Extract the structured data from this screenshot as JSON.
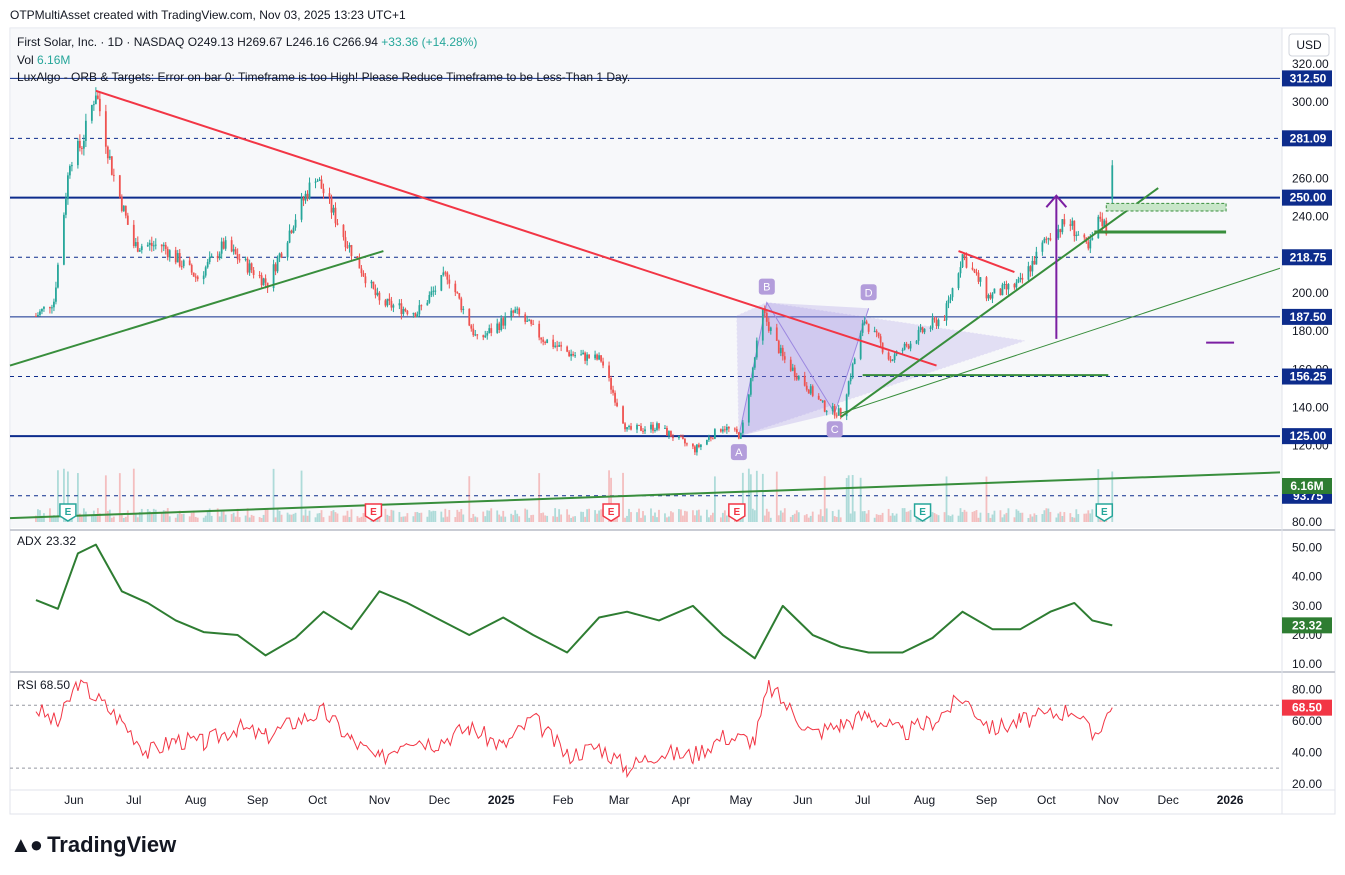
{
  "header": {
    "attribution": "OTPMultiAsset created with TradingView.com, Nov 03, 2025 13:23 UTC+1"
  },
  "legend": {
    "symbol": "First Solar, Inc. · 1D · NASDAQ",
    "open": "O249.13",
    "high": "H269.67",
    "low": "L246.16",
    "close": "C266.94",
    "change": "+33.36 (+14.28%)",
    "vol_label": "Vol",
    "vol_value": "6.16M",
    "indicator_note": "LuxAlgo - ORB & Targets: Error on bar 0: Timeframe is too High! Please Reduce Timeframe to be Less-Than 1 Day."
  },
  "currency": "USD",
  "brand": "TradingView",
  "colors": {
    "up": "#26a69a",
    "down": "#ef5350",
    "trend_red": "#f23645",
    "trend_green": "#388e3c",
    "level_blue": "#0d2c8c",
    "adx": "#2e7d32",
    "rsi": "#f23645",
    "pattern": "#9c88e0",
    "arrow": "#7b1fa2"
  },
  "chart_data": [
    {
      "type": "candlestick",
      "title": "First Solar, Inc. · 1D · NASDAQ",
      "ylim": [
        80,
        330
      ],
      "y_ticks": [
        80,
        100,
        120,
        140,
        160,
        180,
        200,
        220,
        240,
        260,
        280,
        300,
        320
      ],
      "y_tick_labels": [
        "80.00",
        "",
        "120.00",
        "140.00",
        "160.00",
        "180.00",
        "200.00",
        "",
        "240.00",
        "260.00",
        "",
        "300.00",
        "320.00"
      ],
      "x_tick_labels": [
        {
          "date": "2024-06-01",
          "label": "Jun"
        },
        {
          "date": "2024-07-01",
          "label": "Jul"
        },
        {
          "date": "2024-08-01",
          "label": "Aug"
        },
        {
          "date": "2024-09-01",
          "label": "Sep"
        },
        {
          "date": "2024-10-01",
          "label": "Oct"
        },
        {
          "date": "2024-11-01",
          "label": "Nov"
        },
        {
          "date": "2024-12-01",
          "label": "Dec"
        },
        {
          "date": "2025-01-01",
          "label": "2025"
        },
        {
          "date": "2025-02-01",
          "label": "Feb"
        },
        {
          "date": "2025-03-01",
          "label": "Mar"
        },
        {
          "date": "2025-04-01",
          "label": "Apr"
        },
        {
          "date": "2025-05-01",
          "label": "May"
        },
        {
          "date": "2025-06-01",
          "label": "Jun"
        },
        {
          "date": "2025-07-01",
          "label": "Jul"
        },
        {
          "date": "2025-08-01",
          "label": "Aug"
        },
        {
          "date": "2025-09-01",
          "label": "Sep"
        },
        {
          "date": "2025-10-01",
          "label": "Oct"
        },
        {
          "date": "2025-11-01",
          "label": "Nov"
        },
        {
          "date": "2025-12-01",
          "label": "Dec"
        },
        {
          "date": "2026-01-01",
          "label": "2026"
        }
      ],
      "close_path": [
        {
          "date": "2024-05-13",
          "close": 188
        },
        {
          "date": "2024-05-22",
          "close": 196
        },
        {
          "date": "2024-05-30",
          "close": 270
        },
        {
          "date": "2024-06-05",
          "close": 278
        },
        {
          "date": "2024-06-12",
          "close": 306
        },
        {
          "date": "2024-06-20",
          "close": 265
        },
        {
          "date": "2024-07-01",
          "close": 225
        },
        {
          "date": "2024-07-15",
          "close": 225
        },
        {
          "date": "2024-08-02",
          "close": 208
        },
        {
          "date": "2024-08-15",
          "close": 225
        },
        {
          "date": "2024-09-06",
          "close": 205
        },
        {
          "date": "2024-09-20",
          "close": 240
        },
        {
          "date": "2024-09-30",
          "close": 262
        },
        {
          "date": "2024-10-15",
          "close": 228
        },
        {
          "date": "2024-11-01",
          "close": 195
        },
        {
          "date": "2024-11-20",
          "close": 190
        },
        {
          "date": "2024-12-05",
          "close": 210
        },
        {
          "date": "2024-12-20",
          "close": 175
        },
        {
          "date": "2025-01-08",
          "close": 190
        },
        {
          "date": "2025-01-22",
          "close": 176
        },
        {
          "date": "2025-02-05",
          "close": 168
        },
        {
          "date": "2025-02-20",
          "close": 165
        },
        {
          "date": "2025-03-05",
          "close": 128
        },
        {
          "date": "2025-03-20",
          "close": 130
        },
        {
          "date": "2025-04-08",
          "close": 118
        },
        {
          "date": "2025-04-22",
          "close": 130
        },
        {
          "date": "2025-05-01",
          "close": 125
        },
        {
          "date": "2025-05-12",
          "close": 190
        },
        {
          "date": "2025-05-22",
          "close": 166
        },
        {
          "date": "2025-06-12",
          "close": 140
        },
        {
          "date": "2025-06-20",
          "close": 137
        },
        {
          "date": "2025-07-02",
          "close": 186
        },
        {
          "date": "2025-07-15",
          "close": 165
        },
        {
          "date": "2025-07-31",
          "close": 180
        },
        {
          "date": "2025-08-11",
          "close": 188
        },
        {
          "date": "2025-08-20",
          "close": 220
        },
        {
          "date": "2025-09-02",
          "close": 198
        },
        {
          "date": "2025-09-18",
          "close": 205
        },
        {
          "date": "2025-10-01",
          "close": 228
        },
        {
          "date": "2025-10-12",
          "close": 238
        },
        {
          "date": "2025-10-22",
          "close": 222
        },
        {
          "date": "2025-10-28",
          "close": 240
        },
        {
          "date": "2025-10-31",
          "close": 233.58
        },
        {
          "date": "2025-11-03",
          "close": 266.94
        }
      ],
      "horizontal_levels": [
        {
          "value": 312.5,
          "label": "312.50",
          "style": "solid"
        },
        {
          "value": 281.09,
          "label": "281.09",
          "style": "dashed"
        },
        {
          "value": 250.0,
          "label": "250.00",
          "style": "solid"
        },
        {
          "value": 218.75,
          "label": "218.75",
          "style": "dashed"
        },
        {
          "value": 187.5,
          "label": "187.50",
          "style": "solid"
        },
        {
          "value": 156.25,
          "label": "156.25",
          "style": "dashed"
        },
        {
          "value": 125.0,
          "label": "125.00",
          "style": "solid"
        },
        {
          "value": 93.75,
          "label": "93.75",
          "style": "dashed"
        }
      ],
      "last_volume_label": "6.16M",
      "harmonic_points": [
        {
          "label": "A",
          "date": "2025-04-30",
          "value": 125
        },
        {
          "label": "B",
          "date": "2025-05-14",
          "value": 195
        },
        {
          "label": "C",
          "date": "2025-06-17",
          "value": 137
        },
        {
          "label": "D",
          "date": "2025-07-04",
          "value": 192
        }
      ],
      "events": [
        {
          "date": "2024-05-29",
          "label": "E",
          "kind": "earnings-beat"
        },
        {
          "date": "2024-10-29",
          "label": "E",
          "kind": "earnings-miss"
        },
        {
          "date": "2025-02-25",
          "label": "E",
          "kind": "earnings-miss"
        },
        {
          "date": "2025-04-29",
          "label": "E",
          "kind": "earnings-miss"
        },
        {
          "date": "2025-07-31",
          "label": "E",
          "kind": "earnings-beat"
        },
        {
          "date": "2025-10-30",
          "label": "E",
          "kind": "earnings-beat"
        }
      ],
      "trendlines": [
        {
          "color": "red",
          "from": {
            "date": "2024-06-12",
            "value": 306
          },
          "to": {
            "date": "2025-08-07",
            "value": 162
          }
        },
        {
          "color": "green",
          "from": {
            "date": "2024-04-30",
            "value": 162
          },
          "to": {
            "date": "2024-11-03",
            "value": 222
          }
        },
        {
          "color": "green",
          "from": {
            "date": "2025-06-20",
            "value": 135
          },
          "to": {
            "date": "2025-11-26",
            "value": 255
          }
        },
        {
          "color": "green-thin",
          "from": {
            "date": "2025-06-20",
            "value": 137
          },
          "to": {
            "date": "2026-01-26",
            "value": 213
          }
        },
        {
          "color": "green",
          "from": {
            "date": "2024-04-30",
            "value": 82
          },
          "to": {
            "date": "2026-01-26",
            "value": 106
          }
        },
        {
          "color": "red",
          "from": {
            "date": "2025-08-18",
            "value": 222
          },
          "to": {
            "date": "2025-09-15",
            "value": 211
          }
        }
      ]
    },
    {
      "type": "line",
      "series": [
        {
          "name": "ADX",
          "last": 23.32
        }
      ],
      "legend_label": "ADX",
      "legend_value": "23.32",
      "last_label": "23.32",
      "ylim": [
        8,
        55
      ],
      "y_ticks": [
        10,
        20,
        30,
        40,
        50
      ],
      "y_tick_labels": [
        "10.00",
        "20.00",
        "30.00",
        "40.00",
        "50.00"
      ],
      "x": [
        "2024-05-13",
        "2024-05-24",
        "2024-06-03",
        "2024-06-12",
        "2024-06-25",
        "2024-07-08",
        "2024-07-22",
        "2024-08-05",
        "2024-08-22",
        "2024-09-05",
        "2024-09-20",
        "2024-10-04",
        "2024-10-18",
        "2024-11-01",
        "2024-11-15",
        "2024-11-29",
        "2024-12-16",
        "2025-01-02",
        "2025-01-17",
        "2025-02-03",
        "2025-02-19",
        "2025-03-05",
        "2025-03-21",
        "2025-04-07",
        "2025-04-22",
        "2025-05-08",
        "2025-05-22",
        "2025-06-06",
        "2025-06-20",
        "2025-07-04",
        "2025-07-21",
        "2025-08-05",
        "2025-08-20",
        "2025-09-04",
        "2025-09-18",
        "2025-10-03",
        "2025-10-15",
        "2025-10-24",
        "2025-11-03"
      ],
      "values": [
        32,
        29,
        48,
        51,
        35,
        31,
        25,
        21,
        20,
        13,
        19,
        28,
        22,
        35,
        31,
        26,
        20,
        26,
        20,
        14,
        26,
        28,
        25,
        30,
        20,
        12,
        30,
        20,
        16,
        14,
        14,
        19,
        28,
        22,
        22,
        28,
        31,
        25,
        23.32
      ]
    },
    {
      "type": "line",
      "series": [
        {
          "name": "RSI",
          "last": 68.5
        }
      ],
      "legend_label": "RSI",
      "legend_value": "68.50",
      "last_label": "68.50",
      "ylim": [
        18,
        88
      ],
      "y_ticks": [
        20,
        40,
        60,
        80
      ],
      "y_tick_labels": [
        "20.00",
        "40.00",
        "60.00",
        "80.00"
      ],
      "bands": [
        70,
        30
      ],
      "x": [
        "2024-05-13",
        "2024-05-24",
        "2024-06-03",
        "2024-06-12",
        "2024-06-25",
        "2024-07-08",
        "2024-07-22",
        "2024-08-05",
        "2024-08-22",
        "2024-09-05",
        "2024-09-20",
        "2024-10-04",
        "2024-10-18",
        "2024-11-01",
        "2024-11-15",
        "2024-11-29",
        "2024-12-16",
        "2025-01-02",
        "2025-01-17",
        "2025-02-03",
        "2025-02-19",
        "2025-03-05",
        "2025-03-21",
        "2025-04-07",
        "2025-04-22",
        "2025-05-08",
        "2025-05-15",
        "2025-06-06",
        "2025-06-20",
        "2025-07-04",
        "2025-07-21",
        "2025-08-05",
        "2025-08-20",
        "2025-09-04",
        "2025-09-18",
        "2025-10-03",
        "2025-10-15",
        "2025-10-24",
        "2025-11-03"
      ],
      "values": [
        68,
        58,
        85,
        75,
        60,
        40,
        48,
        46,
        56,
        50,
        60,
        66,
        48,
        35,
        50,
        46,
        56,
        44,
        62,
        38,
        44,
        30,
        40,
        38,
        50,
        48,
        82,
        52,
        58,
        64,
        52,
        60,
        75,
        55,
        60,
        64,
        68,
        50,
        68.5
      ]
    }
  ]
}
